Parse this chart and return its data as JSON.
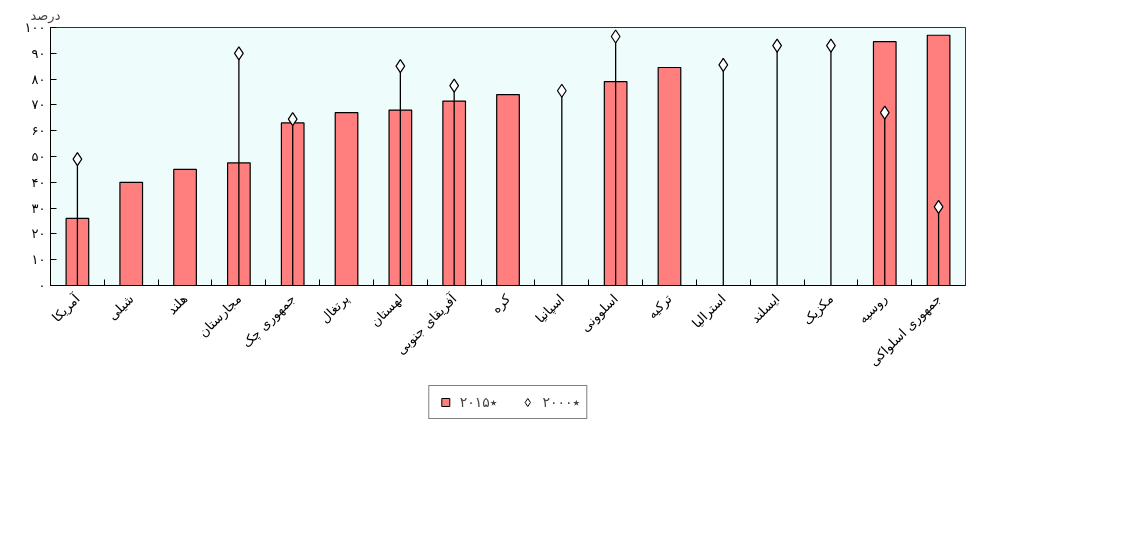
{
  "chart_data": {
    "type": "bar",
    "ylabel": "درصد",
    "categories": [
      "آمریکا",
      "شیلی",
      "هلند",
      "مجارستان",
      "جمهوری چک",
      "پرتغال",
      "لهستان",
      "آفریقای جنوبی",
      "کره",
      "اسپانیا",
      "اسلوونی",
      "ترکیه",
      "استرالیا",
      "ایسلند",
      "مکزیک",
      "روسیه",
      "جمهوری اسلواکی"
    ],
    "series": [
      {
        "name": "۲۰۱۵٭",
        "type": "bar",
        "color": "#ff7f7f",
        "values": [
          26,
          40,
          45,
          47.5,
          63,
          67,
          68,
          71.5,
          74,
          null,
          79,
          84.5,
          null,
          null,
          null,
          94.5,
          97
        ]
      },
      {
        "name": "۲۰۰۰٭",
        "type": "lollipop",
        "marker": "diamond",
        "color": "#ffffff",
        "values": [
          49,
          null,
          null,
          90,
          64.5,
          null,
          85,
          77.5,
          null,
          75.5,
          96.5,
          null,
          85.5,
          93,
          93,
          67,
          30.5
        ]
      }
    ],
    "ylim": [
      0,
      100
    ],
    "yticks": [
      {
        "value": 0,
        "label": "۰"
      },
      {
        "value": 10,
        "label": "۱۰"
      },
      {
        "value": 20,
        "label": "۲۰"
      },
      {
        "value": 30,
        "label": "۳۰"
      },
      {
        "value": 40,
        "label": "۴۰"
      },
      {
        "value": 50,
        "label": "۵۰"
      },
      {
        "value": 60,
        "label": "۶۰"
      },
      {
        "value": 70,
        "label": "۷۰"
      },
      {
        "value": 80,
        "label": "۸۰"
      },
      {
        "value": 90,
        "label": "۹۰"
      },
      {
        "value": 100,
        "label": "۱۰۰"
      }
    ],
    "grid": false,
    "legend": "bottom"
  }
}
